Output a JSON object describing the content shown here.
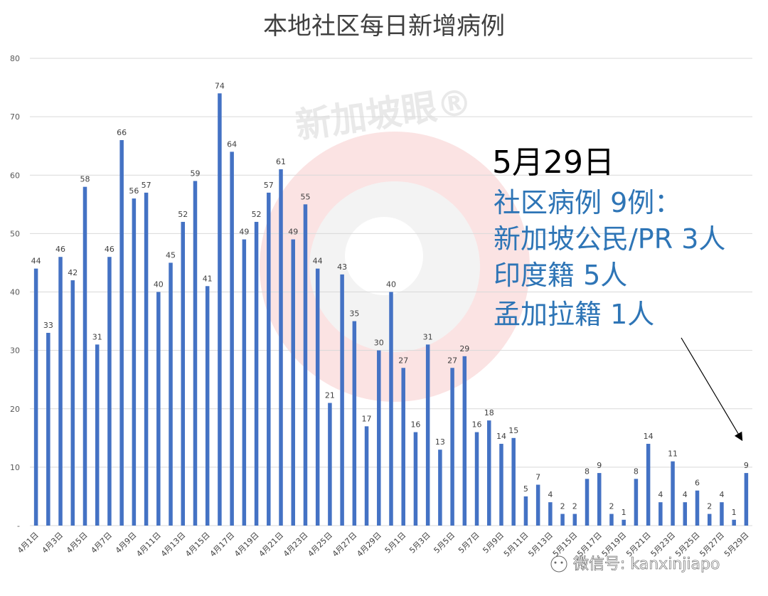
{
  "chart_data": {
    "type": "bar",
    "title": "本地社区每日新增病例",
    "xlabel": "",
    "ylabel": "",
    "ylim": [
      0,
      80
    ],
    "yticks": [
      0,
      10,
      20,
      30,
      40,
      50,
      60,
      70,
      80
    ],
    "ytick_labels": [
      "-",
      "10",
      "20",
      "30",
      "40",
      "50",
      "60",
      "70",
      "80"
    ],
    "grid": true,
    "legend": "none",
    "bar_color": "#4472c4",
    "categories": [
      "4月1日",
      "4月2日",
      "4月3日",
      "4月4日",
      "4月5日",
      "4月6日",
      "4月7日",
      "4月8日",
      "4月9日",
      "4月10日",
      "4月11日",
      "4月12日",
      "4月13日",
      "4月14日",
      "4月15日",
      "4月16日",
      "4月17日",
      "4月18日",
      "4月19日",
      "4月20日",
      "4月21日",
      "4月22日",
      "4月23日",
      "4月24日",
      "4月25日",
      "4月26日",
      "4月27日",
      "4月28日",
      "4月29日",
      "4月30日",
      "5月1日",
      "5月2日",
      "5月3日",
      "5月4日",
      "5月5日",
      "5月6日",
      "5月7日",
      "5月8日",
      "5月9日",
      "5月10日",
      "5月11日",
      "5月12日",
      "5月13日",
      "5月14日",
      "5月15日",
      "5月16日",
      "5月17日",
      "5月18日",
      "5月19日",
      "5月20日",
      "5月21日",
      "5月22日",
      "5月23日",
      "5月24日",
      "5月25日",
      "5月26日",
      "5月27日",
      "5月28日",
      "5月29日"
    ],
    "visible_tick_labels": [
      "4月1日",
      "4月3日",
      "4月5日",
      "4月7日",
      "4月9日",
      "4月11日",
      "4月13日",
      "4月15日",
      "4月17日",
      "4月19日",
      "4月21日",
      "4月23日",
      "4月25日",
      "4月27日",
      "4月29日",
      "5月1日",
      "5月3日",
      "5月5日",
      "5月7日",
      "5月9日",
      "5月11日",
      "5月13日",
      "5月15日",
      "5月17日",
      "5月19日",
      "5月21日",
      "5月23日",
      "5月25日",
      "5月27日",
      "5月29日"
    ],
    "values": [
      44,
      33,
      46,
      42,
      58,
      31,
      46,
      66,
      56,
      57,
      40,
      45,
      52,
      59,
      41,
      74,
      64,
      49,
      52,
      57,
      61,
      49,
      55,
      44,
      21,
      43,
      35,
      17,
      30,
      40,
      27,
      16,
      31,
      13,
      27,
      29,
      16,
      18,
      14,
      15,
      5,
      7,
      4,
      2,
      2,
      8,
      9,
      2,
      1,
      8,
      14,
      4,
      11,
      4,
      6,
      2,
      4,
      1,
      9
    ]
  },
  "annotation": {
    "date": "5月29日",
    "lines": [
      "社区病例 9例：",
      "新加坡公民/PR 3人",
      "印度籍 5人",
      "孟加拉籍 1人"
    ],
    "date_color": "#000000",
    "text_color": "#2e75b6"
  },
  "watermark": {
    "text": "新加坡眼®",
    "credit": "微信号: kanxinjiapo"
  }
}
